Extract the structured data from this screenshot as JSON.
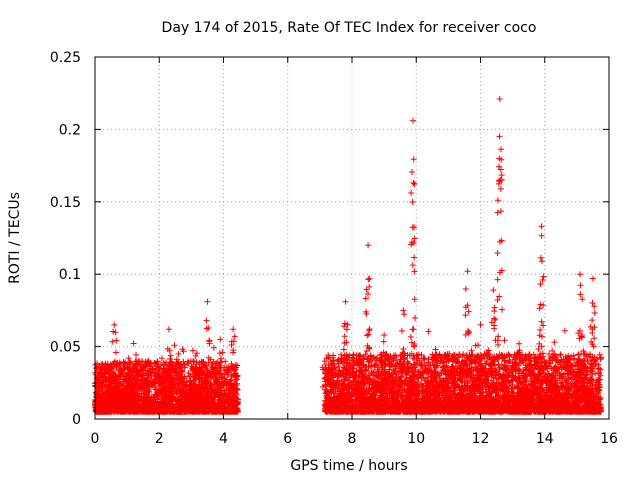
{
  "chart_data": {
    "type": "scatter",
    "title": "Day 174 of 2015, Rate Of TEC Index for receiver coco",
    "xlabel": "GPS time / hours",
    "ylabel": "ROTI / TECUs",
    "xlim": [
      0,
      16
    ],
    "ylim": [
      0,
      0.25
    ],
    "x_ticks": [
      "0",
      "2",
      "4",
      "6",
      "8",
      "10",
      "12",
      "14",
      "16"
    ],
    "y_ticks": [
      "0",
      "0.05",
      "0.1",
      "0.15",
      "0.2",
      "0.25"
    ],
    "grid": true,
    "marker": "+",
    "series": [
      {
        "name": "ROTI",
        "color": "#ff0000",
        "segments": [
          {
            "x_start": 0.0,
            "x_end": 4.45,
            "base": 0.005,
            "typical_max": 0.035
          },
          {
            "x_start": 7.15,
            "x_end": 15.75,
            "base": 0.005,
            "typical_max": 0.04
          }
        ],
        "peaks": [
          {
            "x": 0.6,
            "y": 0.065
          },
          {
            "x": 1.05,
            "y": 0.042
          },
          {
            "x": 2.3,
            "y": 0.062
          },
          {
            "x": 2.6,
            "y": 0.045
          },
          {
            "x": 3.5,
            "y": 0.081
          },
          {
            "x": 3.9,
            "y": 0.055
          },
          {
            "x": 4.3,
            "y": 0.062
          },
          {
            "x": 7.15,
            "y": 0.04
          },
          {
            "x": 7.8,
            "y": 0.081
          },
          {
            "x": 8.5,
            "y": 0.12
          },
          {
            "x": 9.0,
            "y": 0.058
          },
          {
            "x": 9.6,
            "y": 0.075
          },
          {
            "x": 9.9,
            "y": 0.206
          },
          {
            "x": 10.6,
            "y": 0.048
          },
          {
            "x": 11.6,
            "y": 0.102
          },
          {
            "x": 12.0,
            "y": 0.065
          },
          {
            "x": 12.4,
            "y": 0.089
          },
          {
            "x": 12.6,
            "y": 0.221
          },
          {
            "x": 13.2,
            "y": 0.052
          },
          {
            "x": 13.9,
            "y": 0.133
          },
          {
            "x": 14.3,
            "y": 0.053
          },
          {
            "x": 15.1,
            "y": 0.1
          },
          {
            "x": 15.5,
            "y": 0.097
          }
        ]
      }
    ]
  }
}
